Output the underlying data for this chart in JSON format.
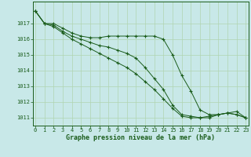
{
  "background_color": "#c8e8e8",
  "grid_color": "#b0d4b0",
  "line_color": "#1a5c1a",
  "marker_color": "#1a5c1a",
  "xlabel": "Graphe pression niveau de la mer (hPa)",
  "xlim": [
    -0.3,
    23.3
  ],
  "ylim": [
    1010.5,
    1018.4
  ],
  "yticks": [
    1011,
    1012,
    1013,
    1014,
    1015,
    1016,
    1017
  ],
  "xticks": [
    0,
    1,
    2,
    3,
    4,
    5,
    6,
    7,
    8,
    9,
    10,
    11,
    12,
    13,
    14,
    15,
    16,
    17,
    18,
    19,
    20,
    21,
    22,
    23
  ],
  "series": [
    [
      1017.8,
      1017.0,
      1017.0,
      1016.7,
      1016.4,
      1016.2,
      1016.1,
      1016.1,
      1016.2,
      1016.2,
      1016.2,
      1016.2,
      1016.2,
      1016.2,
      1016.0,
      1015.0,
      1013.7,
      1012.7,
      1011.5,
      1011.2,
      1011.2,
      1011.3,
      1011.2,
      1011.0
    ],
    [
      1017.8,
      1017.0,
      1016.9,
      1016.5,
      1016.2,
      1016.0,
      1015.8,
      1015.6,
      1015.5,
      1015.3,
      1015.1,
      1014.8,
      1014.2,
      1013.5,
      1012.8,
      1011.8,
      1011.2,
      1011.1,
      1011.0,
      1011.0,
      1011.2,
      1011.3,
      1011.2,
      1011.0
    ],
    [
      1017.8,
      1017.0,
      1016.8,
      1016.4,
      1016.0,
      1015.7,
      1015.4,
      1015.1,
      1014.8,
      1014.5,
      1014.2,
      1013.8,
      1013.3,
      1012.8,
      1012.2,
      1011.6,
      1011.1,
      1011.0,
      1011.0,
      1011.1,
      1011.2,
      1011.3,
      1011.4,
      1011.0
    ]
  ],
  "tick_fontsize": 5.0,
  "xlabel_fontsize": 6.0
}
